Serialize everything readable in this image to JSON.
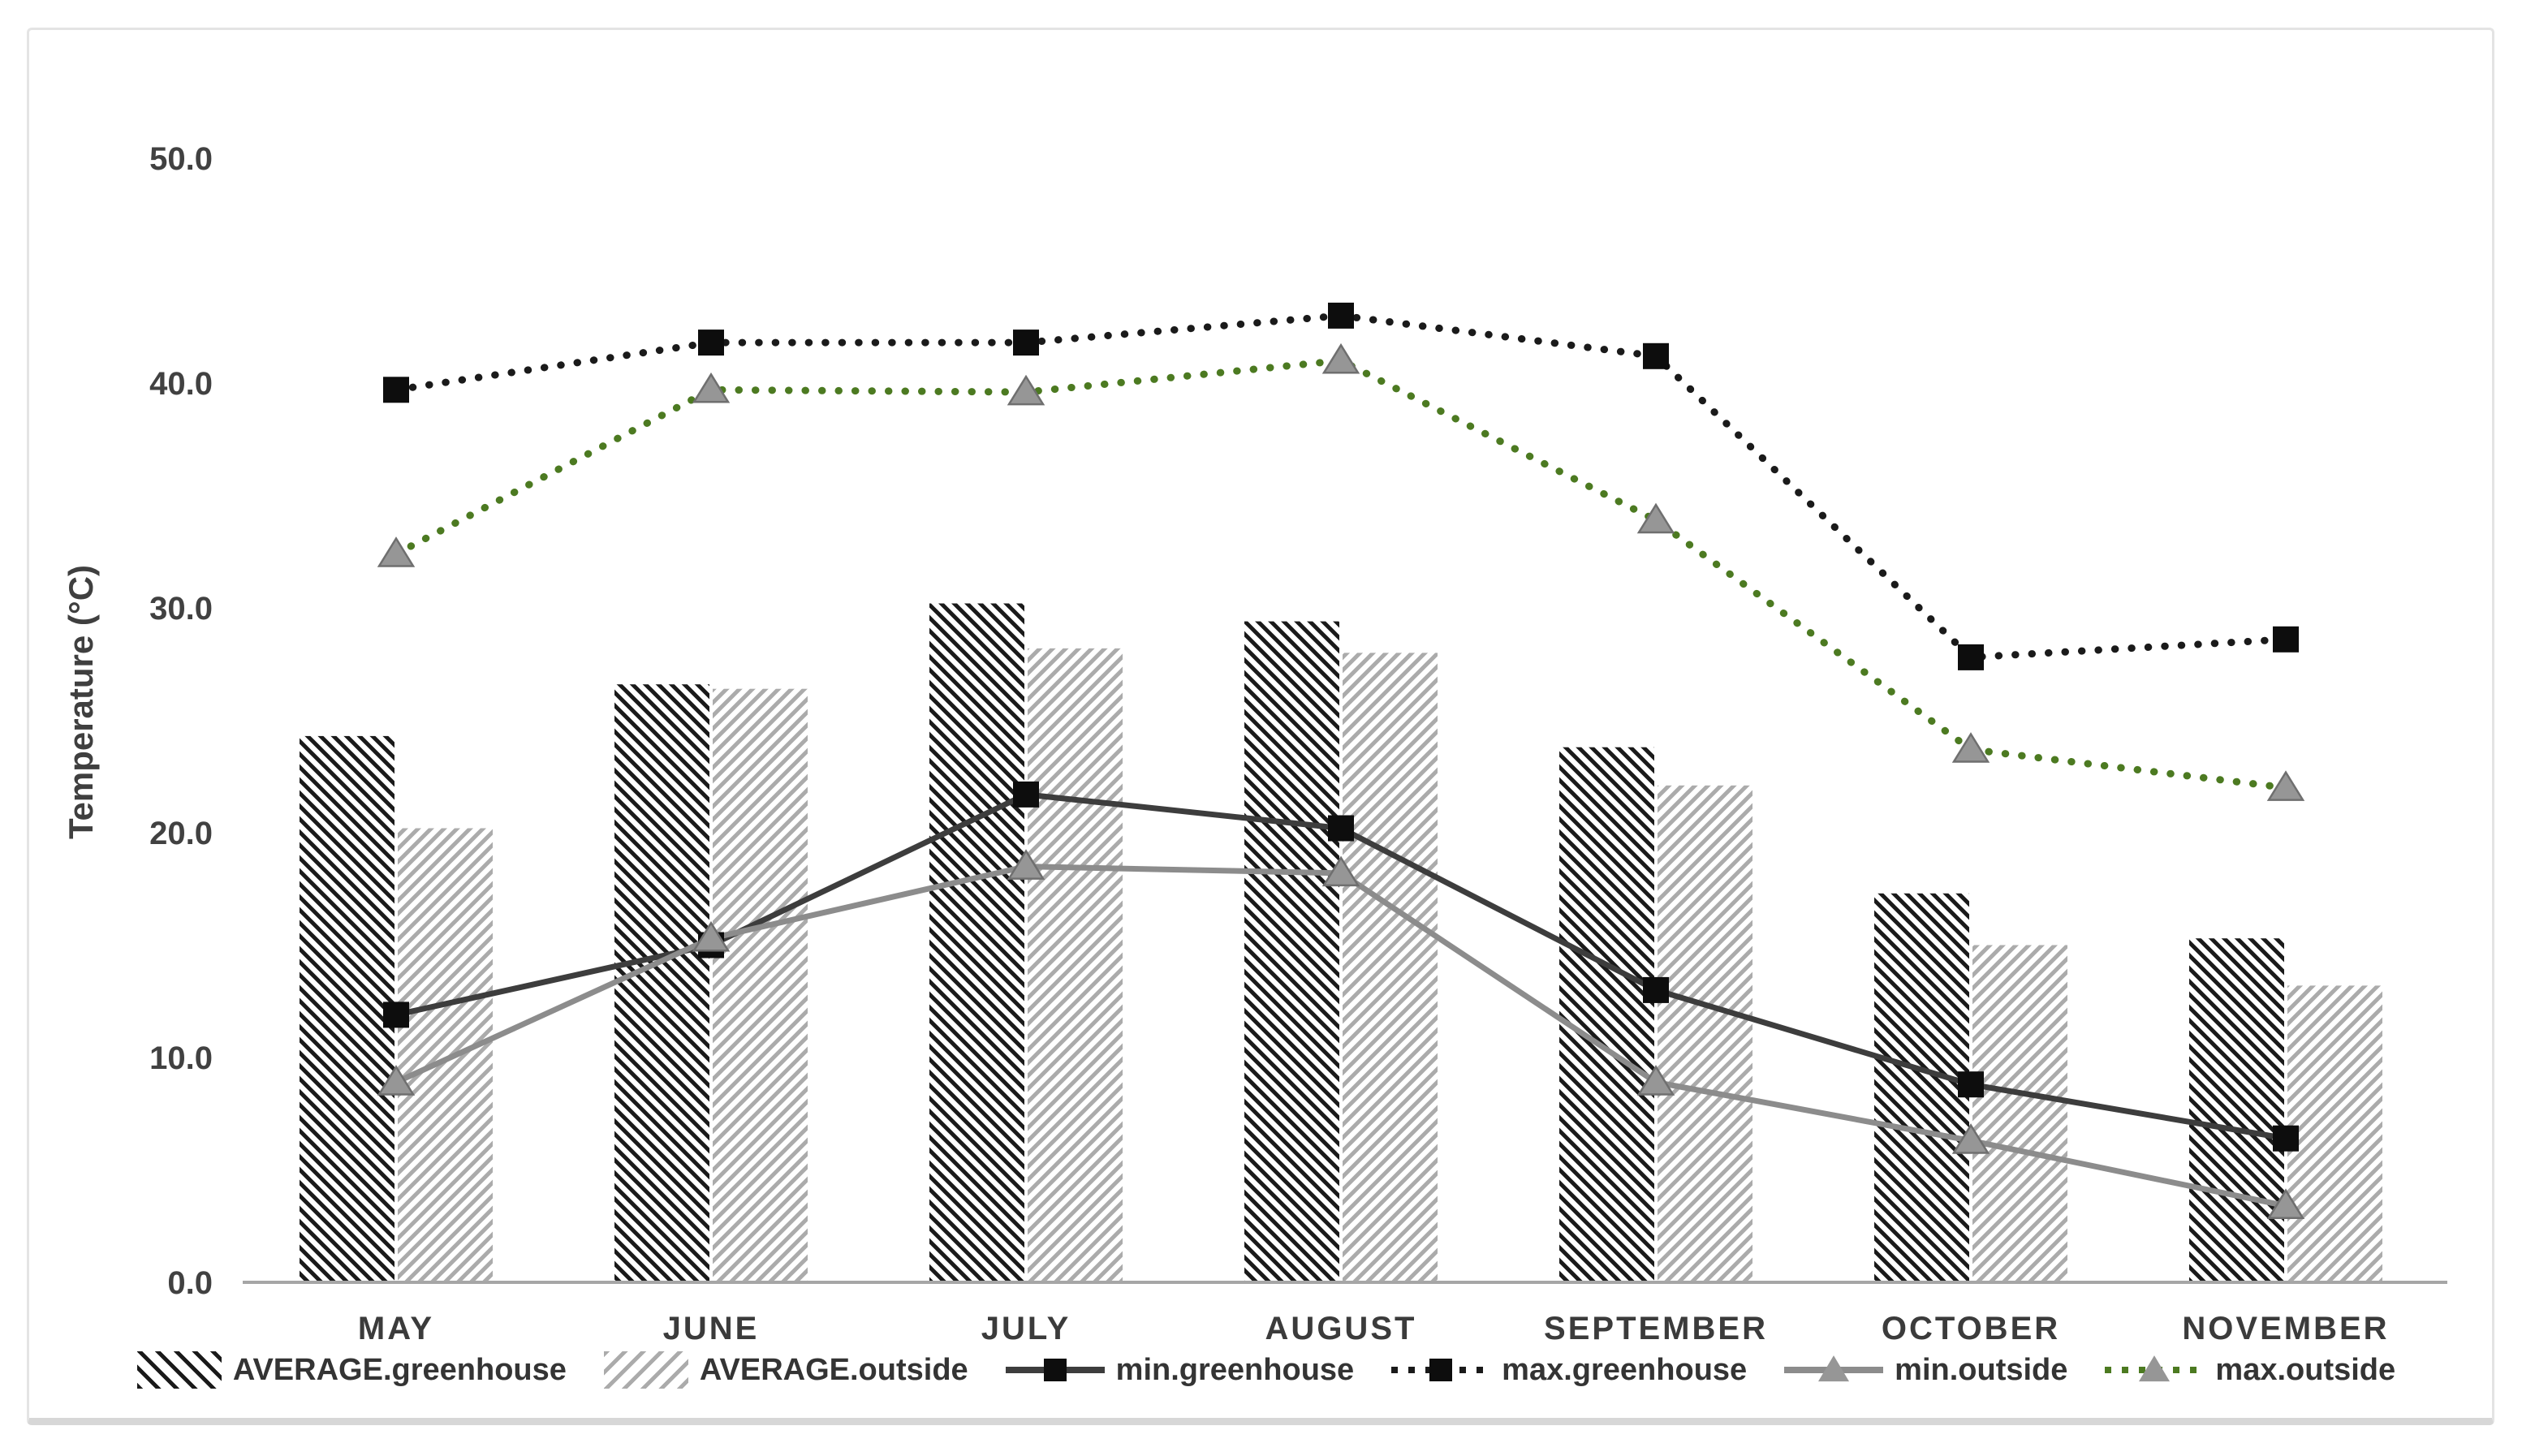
{
  "figure": {
    "y_axis_title": "Temperature (°C)"
  },
  "chart_data": {
    "type": "combo (hatched bars + line series)",
    "title": "",
    "xlabel": "",
    "ylabel": "Temperature (°C)",
    "ylim": [
      0,
      50
    ],
    "y_ticks": [
      "0.0",
      "10.0",
      "20.0",
      "30.0",
      "40.0",
      "50.0"
    ],
    "grid": false,
    "legend_position": "bottom",
    "categories": [
      "MAY",
      "JUNE",
      "JULY",
      "AUGUST",
      "SEPTEMBER",
      "OCTOBER",
      "NOVEMBER"
    ],
    "bar_series": [
      {
        "name": "AVERAGE.greenhouse",
        "pattern": "diagonal-hatch-dark",
        "values": [
          24.3,
          26.6,
          30.2,
          29.4,
          23.8,
          17.3,
          15.3
        ]
      },
      {
        "name": "AVERAGE.outside",
        "pattern": "diagonal-hatch-light",
        "values": [
          20.2,
          26.4,
          28.2,
          28.0,
          22.1,
          15.0,
          13.2
        ]
      }
    ],
    "line_series": [
      {
        "name": "min.greenhouse",
        "line": "solid",
        "color": "#3d3d3d",
        "marker": "square",
        "values": [
          11.9,
          15.0,
          21.7,
          20.2,
          13.0,
          8.8,
          6.4
        ]
      },
      {
        "name": "max.greenhouse",
        "line": "dotted",
        "color": "#1a1a1a",
        "marker": "square",
        "values": [
          39.7,
          41.8,
          41.8,
          43.0,
          41.2,
          27.8,
          28.6
        ]
      },
      {
        "name": "min.outside",
        "line": "solid",
        "color": "#8c8c8c",
        "marker": "triangle",
        "values": [
          8.9,
          15.3,
          18.5,
          18.2,
          8.9,
          6.3,
          3.4
        ]
      },
      {
        "name": "max.outside",
        "line": "dotted",
        "color": "#4c7a21",
        "marker": "triangle",
        "values": [
          32.4,
          39.7,
          39.6,
          41.0,
          33.9,
          23.7,
          22.0
        ]
      }
    ],
    "colors": {
      "hatch_dark": "#1a1a1a",
      "hatch_light": "#ababab",
      "axis_line": "#a6a6a6",
      "text": "#3f3f3f",
      "marker_square": "#0d0d0d",
      "marker_triangle_fill": "#969696",
      "marker_triangle_stroke": "#6f6f6f",
      "max_outside_green": "#4c7a21"
    }
  }
}
